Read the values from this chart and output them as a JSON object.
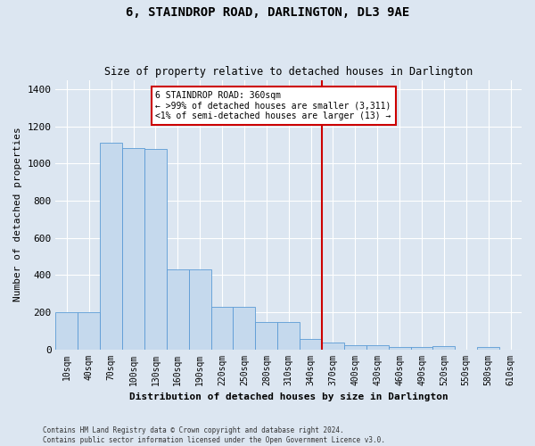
{
  "title": "6, STAINDROP ROAD, DARLINGTON, DL3 9AE",
  "subtitle": "Size of property relative to detached houses in Darlington",
  "xlabel": "Distribution of detached houses by size in Darlington",
  "ylabel": "Number of detached properties",
  "footer_line1": "Contains HM Land Registry data © Crown copyright and database right 2024.",
  "footer_line2": "Contains public sector information licensed under the Open Government Licence v3.0.",
  "bar_labels": [
    "10sqm",
    "40sqm",
    "70sqm",
    "100sqm",
    "130sqm",
    "160sqm",
    "190sqm",
    "220sqm",
    "250sqm",
    "280sqm",
    "310sqm",
    "340sqm",
    "370sqm",
    "400sqm",
    "430sqm",
    "460sqm",
    "490sqm",
    "520sqm",
    "550sqm",
    "580sqm",
    "610sqm"
  ],
  "bar_values": [
    200,
    200,
    1110,
    1085,
    1080,
    430,
    430,
    230,
    230,
    145,
    145,
    55,
    38,
    22,
    22,
    12,
    12,
    18,
    0,
    12,
    0
  ],
  "bar_color": "#c5d9ed",
  "bar_edge_color": "#5b9bd5",
  "fig_bg_color": "#dce6f1",
  "grid_color": "#ffffff",
  "vline_color": "#cc0000",
  "annotation_line1": "6 STAINDROP ROAD: 360sqm",
  "annotation_line2": "← >99% of detached houses are smaller (3,311)",
  "annotation_line3": "<1% of semi-detached houses are larger (13) →",
  "annotation_box_color": "#cc0000",
  "ylim": [
    0,
    1450
  ],
  "yticks": [
    0,
    200,
    400,
    600,
    800,
    1000,
    1200,
    1400
  ]
}
